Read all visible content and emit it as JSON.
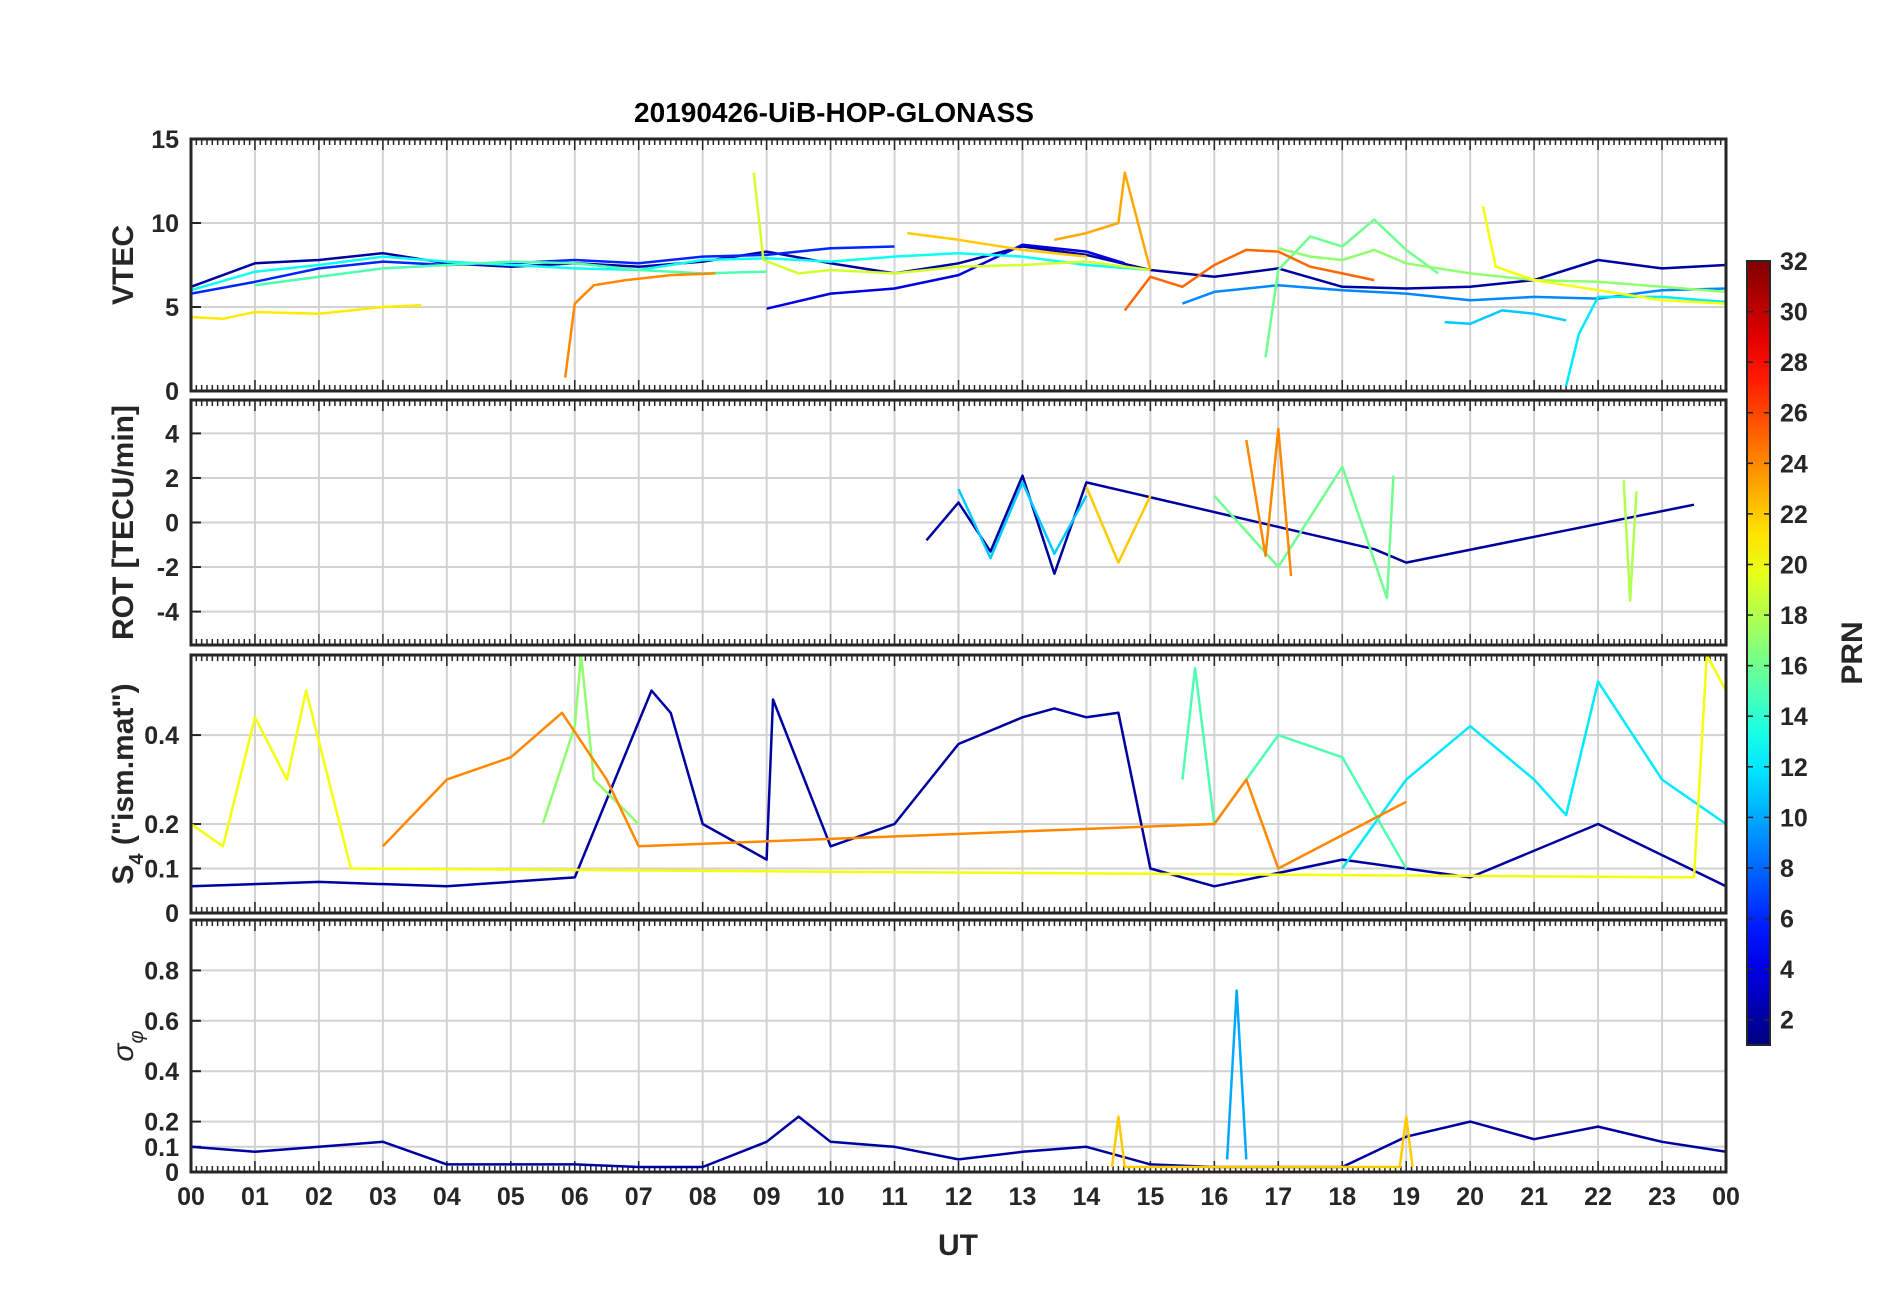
{
  "chart_data": {
    "type": "line",
    "title": "20190426-UiB-HOP-GLONASS",
    "xlabel": "UT",
    "x_ticks": [
      "00",
      "01",
      "02",
      "03",
      "04",
      "05",
      "06",
      "07",
      "08",
      "09",
      "10",
      "11",
      "12",
      "13",
      "14",
      "15",
      "16",
      "17",
      "18",
      "19",
      "20",
      "21",
      "22",
      "23",
      "00"
    ],
    "xlim": [
      0,
      24
    ],
    "grid": true,
    "colorbar": {
      "label": "PRN",
      "colormap": "jet",
      "range": [
        1,
        32
      ],
      "ticks": [
        "2",
        "4",
        "6",
        "8",
        "10",
        "12",
        "14",
        "16",
        "18",
        "20",
        "22",
        "24",
        "26",
        "28",
        "30",
        "32"
      ]
    },
    "panels": [
      {
        "id": "vtec",
        "ylabel": "VTEC",
        "ylim": [
          0,
          15
        ],
        "yticks": [
          "0",
          "5",
          "10",
          "15"
        ],
        "series": [
          {
            "prn": 2,
            "x": [
              0,
              1,
              2,
              3,
              4,
              5,
              6,
              7,
              8,
              9,
              10,
              11,
              12,
              13,
              14,
              15,
              16,
              17,
              18,
              19,
              20,
              21,
              22,
              23,
              24
            ],
            "y": [
              6.2,
              7.6,
              7.8,
              8.2,
              7.6,
              7.4,
              7.6,
              7.4,
              7.7,
              8.3,
              7.6,
              7.0,
              7.6,
              8.6,
              8.1,
              7.2,
              6.8,
              7.3,
              6.2,
              6.1,
              6.2,
              6.6,
              7.8,
              7.3,
              7.5
            ]
          },
          {
            "prn": 4,
            "x": [
              9,
              10,
              11,
              12,
              13,
              14,
              14.6
            ],
            "y": [
              4.9,
              5.8,
              6.1,
              6.9,
              8.7,
              8.3,
              7.6
            ]
          },
          {
            "prn": 6,
            "x": [
              0,
              1,
              2,
              3,
              4,
              5,
              6,
              7,
              8,
              9,
              10,
              11
            ],
            "y": [
              5.8,
              6.5,
              7.3,
              7.7,
              7.5,
              7.6,
              7.8,
              7.6,
              8.0,
              8.1,
              8.5,
              8.6
            ]
          },
          {
            "prn": 9,
            "x": [
              15.5,
              16,
              17,
              18,
              19,
              20,
              21,
              22,
              23,
              24
            ],
            "y": [
              5.2,
              5.9,
              6.3,
              6.0,
              5.8,
              5.4,
              5.6,
              5.5,
              6.0,
              6.1
            ]
          },
          {
            "prn": 11,
            "x": [
              19.6,
              20,
              20.5,
              21,
              21.5
            ],
            "y": [
              4.1,
              4.0,
              4.8,
              4.6,
              4.2
            ]
          },
          {
            "prn": 12,
            "x": [
              21.5,
              21.7,
              22,
              23,
              24
            ],
            "y": [
              0.3,
              3.4,
              5.6,
              5.6,
              5.3
            ]
          },
          {
            "prn": 13,
            "x": [
              0,
              1,
              2,
              3,
              4,
              5,
              6,
              7,
              8,
              9,
              10,
              11,
              12,
              13,
              14,
              15
            ],
            "y": [
              6.0,
              7.1,
              7.5,
              8.0,
              7.7,
              7.5,
              7.3,
              7.2,
              7.8,
              7.9,
              7.7,
              8.0,
              8.2,
              8.0,
              7.5,
              7.2
            ]
          },
          {
            "prn": 15,
            "x": [
              1,
              2,
              3,
              4,
              5,
              6,
              7,
              8,
              9
            ],
            "y": [
              6.3,
              6.8,
              7.3,
              7.5,
              7.7,
              7.6,
              7.2,
              7.0,
              7.1
            ]
          },
          {
            "prn": 16,
            "x": [
              16.8,
              17,
              17.5,
              18,
              18.5,
              19,
              19.5
            ],
            "y": [
              2.0,
              7.2,
              9.2,
              8.6,
              10.2,
              8.4,
              7.0
            ]
          },
          {
            "prn": 17,
            "x": [
              17,
              17.5,
              18,
              18.5,
              19,
              20,
              21,
              22,
              23,
              24
            ],
            "y": [
              8.5,
              8.0,
              7.8,
              8.4,
              7.6,
              7.0,
              6.6,
              6.5,
              6.2,
              5.9
            ]
          },
          {
            "prn": 19,
            "x": [
              8.8,
              8.95,
              9.5,
              10,
              11,
              12,
              13,
              14,
              15
            ],
            "y": [
              13.0,
              7.8,
              7.0,
              7.2,
              7.0,
              7.4,
              7.5,
              7.7,
              7.2
            ]
          },
          {
            "prn": 20,
            "x": [
              20.2,
              20.4,
              21,
              22,
              23,
              24
            ],
            "y": [
              11.0,
              7.4,
              6.6,
              6.0,
              5.4,
              5.2
            ]
          },
          {
            "prn": 21,
            "x": [
              0,
              0.5,
              1,
              2,
              3,
              3.6
            ],
            "y": [
              4.4,
              4.3,
              4.7,
              4.6,
              5.0,
              5.1
            ]
          },
          {
            "prn": 22,
            "x": [
              11.2,
              12,
              13,
              14
            ],
            "y": [
              9.4,
              9.0,
              8.4,
              8.0
            ]
          },
          {
            "prn": 23,
            "x": [
              13.5,
              14,
              14.5,
              14.6,
              15
            ],
            "y": [
              9.0,
              9.4,
              10.0,
              13.0,
              7.2
            ]
          },
          {
            "prn": 24,
            "x": [
              5.85,
              6.0,
              6.3,
              6.8,
              7.5,
              8.2
            ],
            "y": [
              0.8,
              5.2,
              6.3,
              6.6,
              6.9,
              7.0
            ]
          },
          {
            "prn": 25,
            "x": [
              14.6,
              15,
              15.5,
              16,
              16.5,
              17,
              17.5,
              18,
              18.5
            ],
            "y": [
              4.8,
              6.8,
              6.2,
              7.5,
              8.4,
              8.3,
              7.4,
              7.0,
              6.6
            ]
          }
        ]
      },
      {
        "id": "rot",
        "ylabel": "ROT [TECU/min]",
        "ylim": [
          -5.5,
          5.5
        ],
        "yticks": [
          "-4",
          "-2",
          "0",
          "2",
          "4"
        ],
        "series": [
          {
            "prn": 2,
            "x": [
              11.5,
              12,
              12.5,
              13,
              13.5,
              14,
              18.5,
              19,
              23.5
            ],
            "y": [
              -0.8,
              0.9,
              -1.3,
              2.1,
              -2.3,
              1.8,
              -1.2,
              -1.8,
              0.8
            ]
          },
          {
            "prn": 11,
            "x": [
              12,
              12.5,
              13,
              13.5,
              14
            ],
            "y": [
              1.5,
              -1.6,
              1.8,
              -1.4,
              1.2
            ]
          },
          {
            "prn": 16,
            "x": [
              16,
              17,
              18,
              18.7,
              18.8
            ],
            "y": [
              1.2,
              -2.0,
              2.5,
              -3.4,
              2.1
            ]
          },
          {
            "prn": 18,
            "x": [
              22.4,
              22.5,
              22.6
            ],
            "y": [
              1.9,
              -3.5,
              1.4
            ]
          },
          {
            "prn": 22,
            "x": [
              14,
              14.5,
              15
            ],
            "y": [
              1.6,
              -1.8,
              1.2
            ]
          },
          {
            "prn": 24,
            "x": [
              16.5,
              16.8,
              17,
              17.2
            ],
            "y": [
              3.7,
              -1.5,
              4.2,
              -2.4
            ]
          }
        ]
      },
      {
        "id": "s4",
        "ylabel": "S4 (\"ism.mat\")",
        "ylabel_parts": {
          "main": "S",
          "sub": "4",
          "rest": " (\"ism.mat\")"
        },
        "ylim": [
          0,
          0.58
        ],
        "yticks": [
          "0",
          "0.1",
          "0.2",
          "0.4"
        ],
        "series": [
          {
            "prn": 2,
            "x": [
              0,
              2,
              4,
              6,
              7.2,
              7.5,
              8,
              9,
              9.1,
              10,
              11,
              12,
              13,
              13.5,
              14,
              14.5,
              15,
              16,
              18,
              20,
              22,
              24
            ],
            "y": [
              0.06,
              0.07,
              0.06,
              0.08,
              0.5,
              0.45,
              0.2,
              0.12,
              0.48,
              0.15,
              0.2,
              0.38,
              0.44,
              0.46,
              0.44,
              0.45,
              0.1,
              0.06,
              0.12,
              0.08,
              0.2,
              0.06
            ]
          },
          {
            "prn": 12,
            "x": [
              18,
              19,
              20,
              21,
              21.5,
              22,
              23,
              24
            ],
            "y": [
              0.1,
              0.3,
              0.42,
              0.3,
              0.22,
              0.52,
              0.3,
              0.2
            ]
          },
          {
            "prn": 15,
            "x": [
              15.5,
              15.7,
              16,
              17,
              18,
              19
            ],
            "y": [
              0.3,
              0.55,
              0.2,
              0.4,
              0.35,
              0.1
            ]
          },
          {
            "prn": 17,
            "x": [
              5.5,
              6,
              6.1,
              6.3,
              7
            ],
            "y": [
              0.2,
              0.42,
              0.58,
              0.3,
              0.2
            ]
          },
          {
            "prn": 20,
            "x": [
              0,
              0.5,
              1,
              1.5,
              1.8,
              2.5,
              23.5,
              23.7,
              24
            ],
            "y": [
              0.2,
              0.15,
              0.44,
              0.3,
              0.5,
              0.1,
              0.08,
              0.58,
              0.5
            ]
          },
          {
            "prn": 24,
            "x": [
              3,
              4,
              5,
              5.8,
              6.5,
              7,
              16,
              16.5,
              17,
              19
            ],
            "y": [
              0.15,
              0.3,
              0.35,
              0.45,
              0.3,
              0.15,
              0.2,
              0.3,
              0.1,
              0.25
            ]
          }
        ]
      },
      {
        "id": "sigma_phi",
        "ylabel": "σ φ",
        "ylabel_parts": {
          "main": "σ",
          "sub": "φ"
        },
        "ylim": [
          0,
          1.0
        ],
        "yticks": [
          "0",
          "0.1",
          "0.2",
          "0.4",
          "0.6",
          "0.8"
        ],
        "series": [
          {
            "prn": 2,
            "x": [
              0,
              1,
              2,
              3,
              4,
              5,
              6,
              7,
              8,
              9,
              9.5,
              10,
              11,
              12,
              13,
              14,
              15,
              16,
              17,
              18,
              19,
              20,
              21,
              22,
              23,
              24
            ],
            "y": [
              0.1,
              0.08,
              0.1,
              0.12,
              0.03,
              0.03,
              0.03,
              0.02,
              0.02,
              0.12,
              0.22,
              0.12,
              0.1,
              0.05,
              0.08,
              0.1,
              0.03,
              0.02,
              0.02,
              0.02,
              0.14,
              0.2,
              0.13,
              0.18,
              0.12,
              0.08
            ]
          },
          {
            "prn": 10,
            "x": [
              16.2,
              16.35,
              16.5
            ],
            "y": [
              0.05,
              0.72,
              0.05
            ]
          },
          {
            "prn": 22,
            "x": [
              14.4,
              14.5,
              14.6,
              18.9,
              19,
              19.1
            ],
            "y": [
              0.02,
              0.22,
              0.02,
              0.02,
              0.22,
              0.02
            ]
          }
        ]
      }
    ]
  }
}
